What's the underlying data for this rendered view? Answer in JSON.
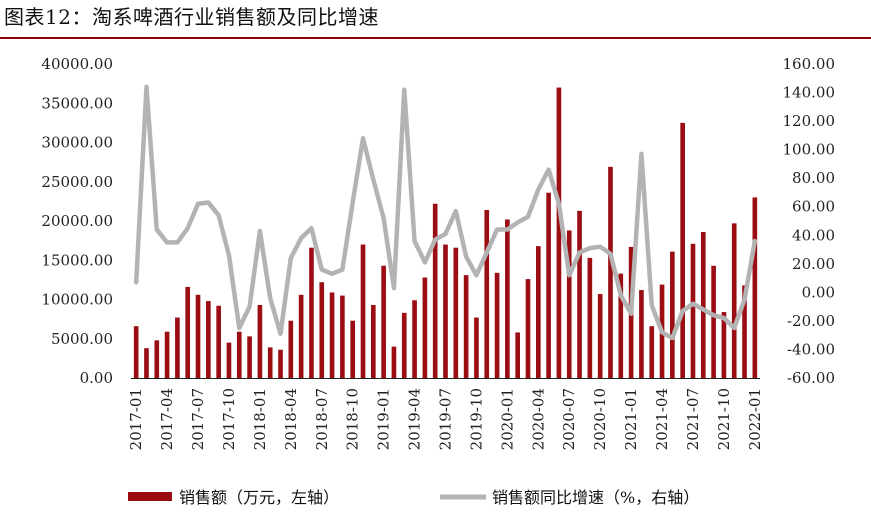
{
  "title": "图表12：淘系啤酒行业销售额及同比增速",
  "colors": {
    "bar": "#9b0d12",
    "line": "#b3b3b3",
    "rule": "#8b0000",
    "axis": "#222222"
  },
  "chart_data": {
    "type": "bar+line",
    "legend_position": "bottom",
    "grid": false,
    "y_left": {
      "ylim": [
        0,
        40000
      ],
      "ticks": [
        "0.00",
        "5000.00",
        "10000.00",
        "15000.00",
        "20000.00",
        "25000.00",
        "30000.00",
        "35000.00",
        "40000.00"
      ]
    },
    "y_right": {
      "ylim": [
        -60,
        160
      ],
      "ticks": [
        "-60.00",
        "-40.00",
        "-20.00",
        "0.00",
        "20.00",
        "40.00",
        "60.00",
        "80.00",
        "100.00",
        "120.00",
        "140.00",
        "160.00"
      ]
    },
    "x_tick_labels": [
      "2017-01",
      "2017-04",
      "2017-07",
      "2017-10",
      "2018-01",
      "2018-04",
      "2018-07",
      "2018-10",
      "2019-01",
      "2019-04",
      "2019-07",
      "2019-10",
      "2020-01",
      "2020-04",
      "2020-07",
      "2020-10",
      "2021-01",
      "2021-04",
      "2021-07",
      "2021-10",
      "2022-01"
    ],
    "months": [
      "2017-01",
      "2017-02",
      "2017-03",
      "2017-04",
      "2017-05",
      "2017-06",
      "2017-07",
      "2017-08",
      "2017-09",
      "2017-10",
      "2017-11",
      "2017-12",
      "2018-01",
      "2018-02",
      "2018-03",
      "2018-04",
      "2018-05",
      "2018-06",
      "2018-07",
      "2018-08",
      "2018-09",
      "2018-10",
      "2018-11",
      "2018-12",
      "2019-01",
      "2019-02",
      "2019-03",
      "2019-04",
      "2019-05",
      "2019-06",
      "2019-07",
      "2019-08",
      "2019-09",
      "2019-10",
      "2019-11",
      "2019-12",
      "2020-01",
      "2020-02",
      "2020-03",
      "2020-04",
      "2020-05",
      "2020-06",
      "2020-07",
      "2020-08",
      "2020-09",
      "2020-10",
      "2020-11",
      "2020-12",
      "2021-01",
      "2021-02",
      "2021-03",
      "2021-04",
      "2021-05",
      "2021-06",
      "2021-07",
      "2021-08",
      "2021-09",
      "2021-10",
      "2021-11",
      "2021-12",
      "2022-01"
    ],
    "series": [
      {
        "name": "销售额（万元，左轴）",
        "type": "bar",
        "axis": "left",
        "values": [
          6600,
          3800,
          4800,
          5900,
          7700,
          11600,
          10600,
          9800,
          9200,
          4500,
          5900,
          5300,
          9300,
          3900,
          3600,
          7300,
          10600,
          16600,
          12200,
          10900,
          10500,
          7300,
          17000,
          9300,
          14300,
          4000,
          8300,
          9900,
          12800,
          22200,
          17000,
          16600,
          13100,
          7700,
          21400,
          13400,
          20200,
          5800,
          12600,
          16800,
          23600,
          37000,
          18800,
          21300,
          15300,
          10700,
          26900,
          13300,
          16700,
          11200,
          6600,
          11900,
          16100,
          32500,
          17100,
          18600,
          14300,
          8400,
          19700,
          11800,
          23000
        ]
      },
      {
        "name": "销售额同比增速（%，右轴）",
        "type": "line",
        "axis": "right",
        "values": [
          7,
          144,
          44,
          35,
          35,
          45,
          62,
          63,
          54,
          26,
          -25,
          -10,
          43,
          -4,
          -29,
          24,
          38,
          45,
          16,
          13,
          16,
          63,
          108,
          79,
          52,
          3,
          142,
          36,
          21,
          37,
          41,
          57,
          25,
          12,
          28,
          44,
          44,
          49,
          53,
          72,
          86,
          62,
          12,
          28,
          31,
          32,
          27,
          -2,
          -15,
          97,
          -9,
          -28,
          -32,
          -13,
          -8,
          -12,
          -16,
          -18,
          -25,
          -5,
          36
        ]
      }
    ]
  }
}
